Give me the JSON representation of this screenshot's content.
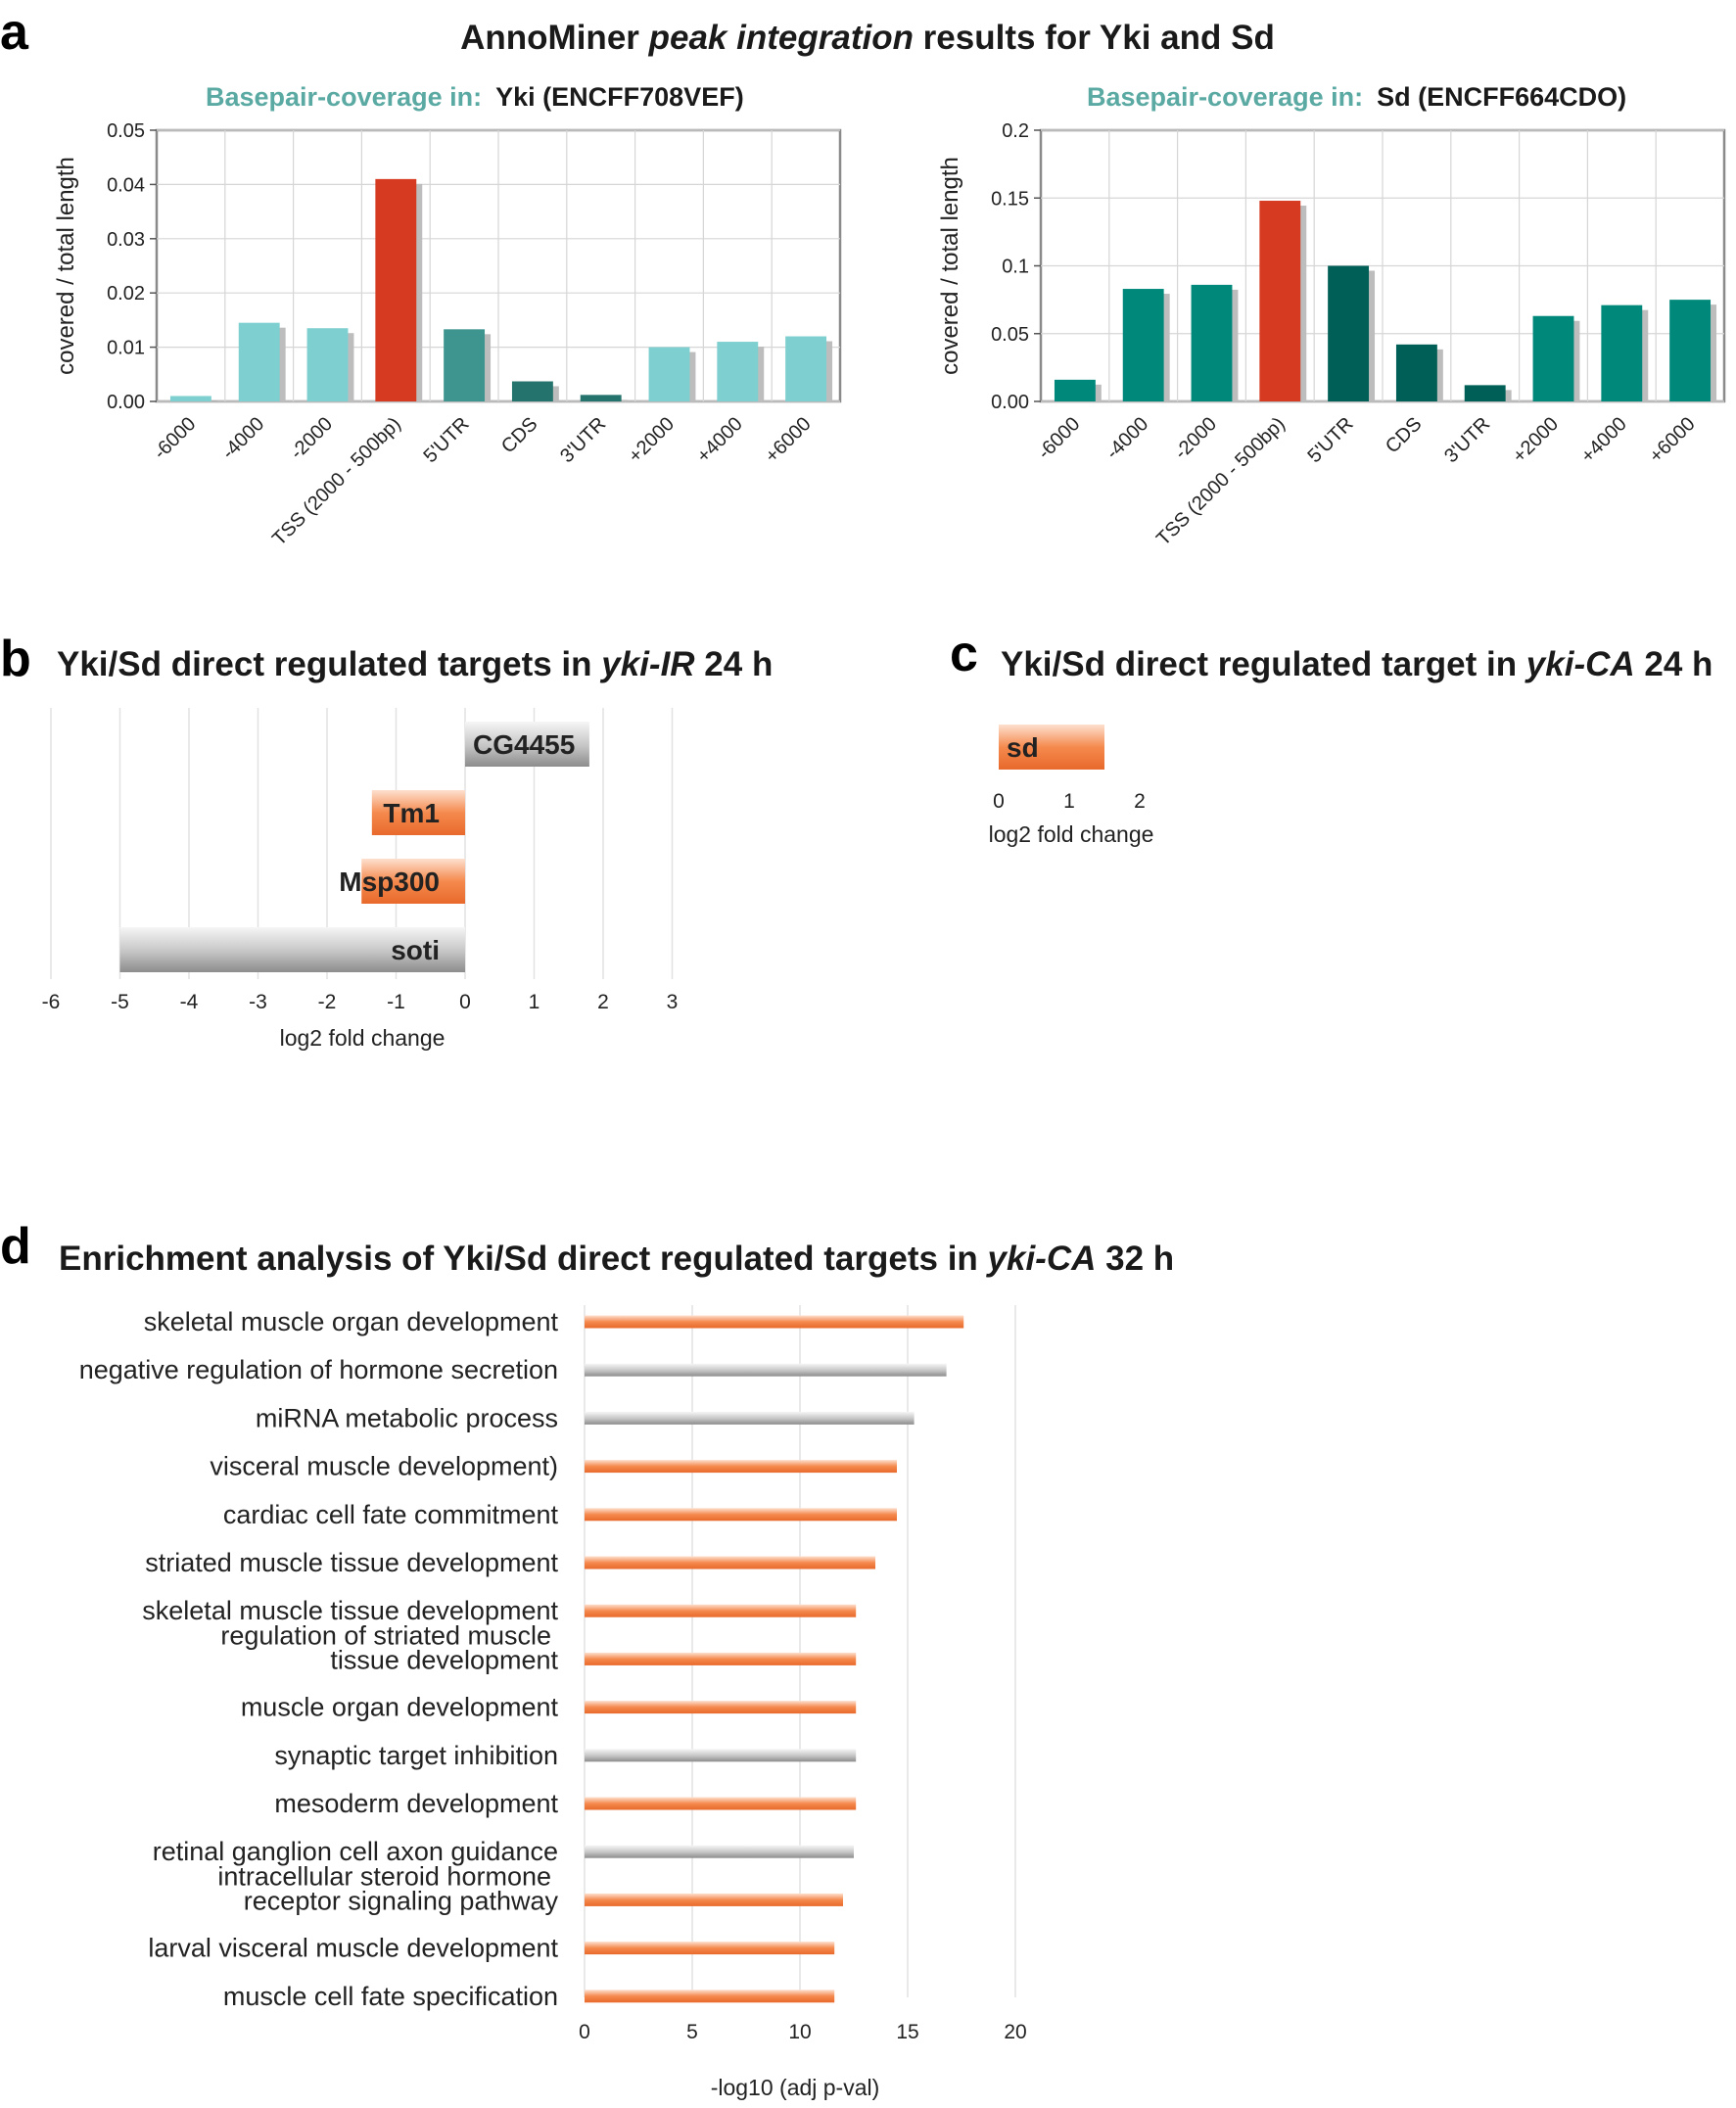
{
  "panel_labels": {
    "a": "a",
    "b": "b",
    "c": "c",
    "d": "d"
  },
  "panel_a": {
    "title_main": "AnnoMiner ",
    "title_italic": "peak integration",
    "title_tail": " results for Yki and Sd",
    "coverage_prefix": "Basepair-coverage in:"
  },
  "colors": {
    "accent_teal_text": "#5aa9a3",
    "tss_red": "#d63b22",
    "yki_light": "#7ecfcf",
    "yki_mid": "#3e958f",
    "yki_dark": "#24736c",
    "sd_main": "#00897b",
    "sd_dark": "#005f56",
    "orange": "#f07a3c",
    "grey": "#a9a9a9",
    "grid": "#d6d6d6"
  },
  "chart_data": [
    {
      "id": "yki",
      "type": "bar",
      "title": "Yki (ENCFF708VEF)",
      "ylabel": "covered / total length",
      "categories": [
        "-6000",
        "-4000",
        "-2000",
        "TSS (2000 - 500bp)",
        "5'UTR",
        "CDS",
        "3'UTR",
        "+2000",
        "+4000",
        "+6000"
      ],
      "values": [
        0.001,
        0.0145,
        0.0135,
        0.041,
        0.0133,
        0.0037,
        0.0012,
        0.01,
        0.011,
        0.012
      ],
      "color_keys": [
        "yki_light",
        "yki_light",
        "yki_light",
        "tss_red",
        "yki_mid",
        "yki_dark",
        "yki_dark",
        "yki_light",
        "yki_light",
        "yki_light"
      ],
      "yticks": [
        "0.00",
        "0.01",
        "0.02",
        "0.03",
        "0.04",
        "0.05"
      ],
      "ylim": [
        0,
        0.05
      ]
    },
    {
      "id": "sd",
      "type": "bar",
      "title": "Sd (ENCFF664CDO)",
      "ylabel": "covered / total length",
      "categories": [
        "-6000",
        "-4000",
        "-2000",
        "TSS (2000 - 500bp)",
        "5'UTR",
        "CDS",
        "3'UTR",
        "+2000",
        "+4000",
        "+6000"
      ],
      "values": [
        0.016,
        0.083,
        0.086,
        0.148,
        0.1,
        0.042,
        0.012,
        0.063,
        0.071,
        0.075
      ],
      "color_keys": [
        "sd_main",
        "sd_main",
        "sd_main",
        "tss_red",
        "sd_dark",
        "sd_dark",
        "sd_dark",
        "sd_main",
        "sd_main",
        "sd_main"
      ],
      "yticks": [
        "0.00",
        "0.05",
        "0.1",
        "0.15",
        "0.2"
      ],
      "ylim": [
        0,
        0.2
      ]
    },
    {
      "id": "yki_ir",
      "type": "bar",
      "title_main": "Yki/Sd direct regulated targets in ",
      "title_italic": "yki-IR",
      "title_tail": " 24 h",
      "xlabel": "log2 fold change",
      "categories": [
        "CG4455",
        "Tm1",
        "Msp300",
        "soti"
      ],
      "values": [
        1.8,
        -1.35,
        -1.5,
        -5.0
      ],
      "color_keys": [
        "grey",
        "orange",
        "orange",
        "grey"
      ],
      "xticks": [
        "-6",
        "-5",
        "-4",
        "-3",
        "-2",
        "-1",
        "0",
        "1",
        "2",
        "3"
      ],
      "xlim": [
        -6,
        3
      ]
    },
    {
      "id": "yki_ca_24",
      "type": "bar",
      "title_main": "Yki/Sd direct regulated target in ",
      "title_italic": "yki-CA",
      "title_tail": " 24 h",
      "xlabel": "log2 fold change",
      "categories": [
        "sd"
      ],
      "values": [
        1.5
      ],
      "color_keys": [
        "orange"
      ],
      "xticks": [
        "0",
        "1",
        "2"
      ],
      "xlim": [
        0,
        2
      ]
    },
    {
      "id": "enrichment",
      "type": "bar",
      "title_main": "Enrichment analysis of Yki/Sd direct regulated targets in ",
      "title_italic": "yki-CA",
      "title_tail": " 32 h",
      "xlabel": "-log10 (adj p-val)",
      "categories": [
        [
          "skeletal muscle organ development"
        ],
        [
          "negative regulation of hormone secretion"
        ],
        [
          "miRNA metabolic process"
        ],
        [
          "visceral muscle development)"
        ],
        [
          "cardiac cell fate commitment"
        ],
        [
          "striated muscle tissue development"
        ],
        [
          "skeletal muscle tissue development"
        ],
        [
          "regulation of striated muscle",
          "tissue development"
        ],
        [
          "muscle organ development"
        ],
        [
          "synaptic target inhibition"
        ],
        [
          "mesoderm development"
        ],
        [
          "retinal ganglion cell axon guidance"
        ],
        [
          "intracellular steroid hormone",
          "receptor signaling pathway"
        ],
        [
          "larval visceral muscle development"
        ],
        [
          "muscle cell fate specification"
        ]
      ],
      "values": [
        17.6,
        16.8,
        15.3,
        14.5,
        14.5,
        13.5,
        12.6,
        12.6,
        12.6,
        12.6,
        12.6,
        12.5,
        12.0,
        11.6,
        11.6
      ],
      "color_keys": [
        "orange",
        "grey",
        "grey",
        "orange",
        "orange",
        "orange",
        "orange",
        "orange",
        "orange",
        "grey",
        "orange",
        "grey",
        "orange",
        "orange",
        "orange"
      ],
      "xticks": [
        "0",
        "5",
        "10",
        "15",
        "20"
      ],
      "xlim": [
        0,
        20
      ]
    }
  ]
}
